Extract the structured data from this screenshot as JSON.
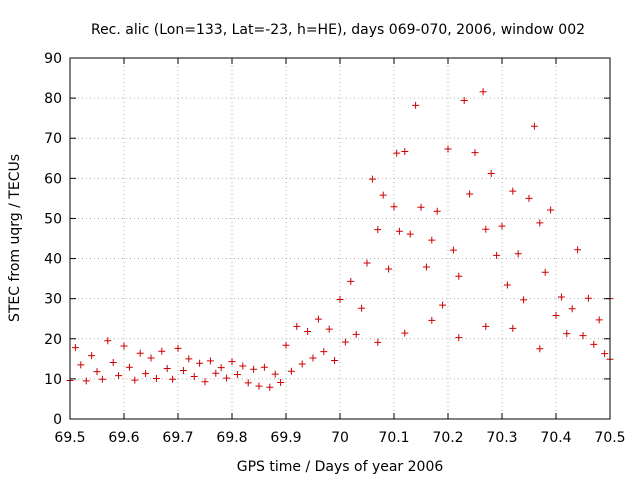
{
  "chart_data": {
    "type": "scatter",
    "title": "Rec. alic (Lon=133, Lat=-23, h=HE), days 069-070, 2006, window 002",
    "xlabel": "GPS time / Days of year 2006",
    "ylabel": "STEC from uqrg / TECUs",
    "xlim": [
      69.5,
      70.5
    ],
    "ylim": [
      0,
      90
    ],
    "xticks": [
      "69.5",
      "69.6",
      "69.7",
      "69.8",
      "69.9",
      "70",
      "70.1",
      "70.2",
      "70.3",
      "70.4",
      "70.5"
    ],
    "yticks": [
      "0",
      "10",
      "20",
      "30",
      "40",
      "50",
      "60",
      "70",
      "80",
      "90"
    ],
    "grid": true,
    "marker": "+",
    "color": "#cc0000",
    "series": [
      {
        "name": "STEC",
        "points": [
          [
            69.5,
            9.6
          ],
          [
            69.51,
            17.8
          ],
          [
            69.52,
            13.5
          ],
          [
            69.53,
            9.5
          ],
          [
            69.54,
            15.8
          ],
          [
            69.55,
            11.8
          ],
          [
            69.56,
            9.9
          ],
          [
            69.57,
            19.5
          ],
          [
            69.58,
            14.1
          ],
          [
            69.59,
            10.8
          ],
          [
            69.6,
            18.2
          ],
          [
            69.61,
            12.9
          ],
          [
            69.62,
            9.7
          ],
          [
            69.63,
            16.4
          ],
          [
            69.64,
            11.3
          ],
          [
            69.65,
            15.2
          ],
          [
            69.66,
            10.1
          ],
          [
            69.67,
            16.9
          ],
          [
            69.68,
            12.6
          ],
          [
            69.69,
            9.9
          ],
          [
            69.7,
            17.6
          ],
          [
            69.71,
            12.1
          ],
          [
            69.72,
            15.0
          ],
          [
            69.73,
            10.6
          ],
          [
            69.74,
            13.9
          ],
          [
            69.75,
            9.3
          ],
          [
            69.76,
            14.5
          ],
          [
            69.77,
            11.4
          ],
          [
            69.78,
            12.8
          ],
          [
            69.79,
            10.2
          ],
          [
            69.8,
            14.3
          ],
          [
            69.81,
            11.1
          ],
          [
            69.82,
            13.2
          ],
          [
            69.83,
            9.0
          ],
          [
            69.84,
            12.4
          ],
          [
            69.85,
            8.2
          ],
          [
            69.86,
            12.9
          ],
          [
            69.87,
            7.9
          ],
          [
            69.88,
            11.2
          ],
          [
            69.89,
            9.1
          ],
          [
            69.9,
            18.4
          ],
          [
            69.91,
            11.9
          ],
          [
            69.92,
            23.1
          ],
          [
            69.93,
            13.7
          ],
          [
            69.94,
            21.8
          ],
          [
            69.95,
            15.2
          ],
          [
            69.96,
            24.9
          ],
          [
            69.97,
            16.8
          ],
          [
            69.98,
            22.4
          ],
          [
            69.99,
            14.6
          ],
          [
            70.0,
            29.8
          ],
          [
            70.01,
            19.2
          ],
          [
            70.02,
            34.3
          ],
          [
            70.03,
            21.1
          ],
          [
            70.04,
            27.6
          ],
          [
            70.05,
            38.9
          ],
          [
            70.06,
            59.8
          ],
          [
            70.07,
            47.2
          ],
          [
            70.08,
            55.8
          ],
          [
            70.09,
            37.4
          ],
          [
            70.1,
            52.9
          ],
          [
            70.105,
            66.3
          ],
          [
            70.11,
            46.8
          ],
          [
            70.12,
            66.7
          ],
          [
            70.13,
            46.1
          ],
          [
            70.14,
            78.2
          ],
          [
            70.15,
            52.8
          ],
          [
            70.16,
            37.9
          ],
          [
            70.17,
            44.6
          ],
          [
            70.18,
            51.8
          ],
          [
            70.19,
            28.4
          ],
          [
            70.2,
            67.3
          ],
          [
            70.21,
            42.1
          ],
          [
            70.22,
            35.6
          ],
          [
            70.23,
            79.4
          ],
          [
            70.24,
            56.1
          ],
          [
            70.25,
            66.4
          ],
          [
            70.265,
            81.6
          ],
          [
            70.27,
            47.3
          ],
          [
            70.28,
            61.2
          ],
          [
            70.29,
            40.8
          ],
          [
            70.3,
            48.1
          ],
          [
            70.31,
            33.4
          ],
          [
            70.32,
            56.8
          ],
          [
            70.33,
            41.2
          ],
          [
            70.34,
            29.7
          ],
          [
            70.35,
            55.0
          ],
          [
            70.36,
            73.0
          ],
          [
            70.37,
            48.9
          ],
          [
            70.38,
            36.6
          ],
          [
            70.39,
            52.1
          ],
          [
            70.4,
            25.8
          ],
          [
            70.41,
            30.4
          ],
          [
            70.42,
            21.3
          ],
          [
            70.43,
            27.5
          ],
          [
            70.44,
            42.2
          ],
          [
            70.45,
            20.8
          ],
          [
            70.46,
            30.1
          ],
          [
            70.47,
            18.6
          ],
          [
            70.48,
            24.7
          ],
          [
            70.49,
            16.3
          ],
          [
            70.5,
            30.0
          ],
          [
            70.5,
            14.9
          ],
          [
            70.12,
            21.4
          ],
          [
            70.22,
            20.3
          ],
          [
            70.32,
            22.6
          ],
          [
            70.07,
            19.1
          ],
          [
            70.17,
            24.6
          ],
          [
            70.27,
            23.1
          ],
          [
            70.37,
            17.5
          ]
        ]
      }
    ]
  }
}
